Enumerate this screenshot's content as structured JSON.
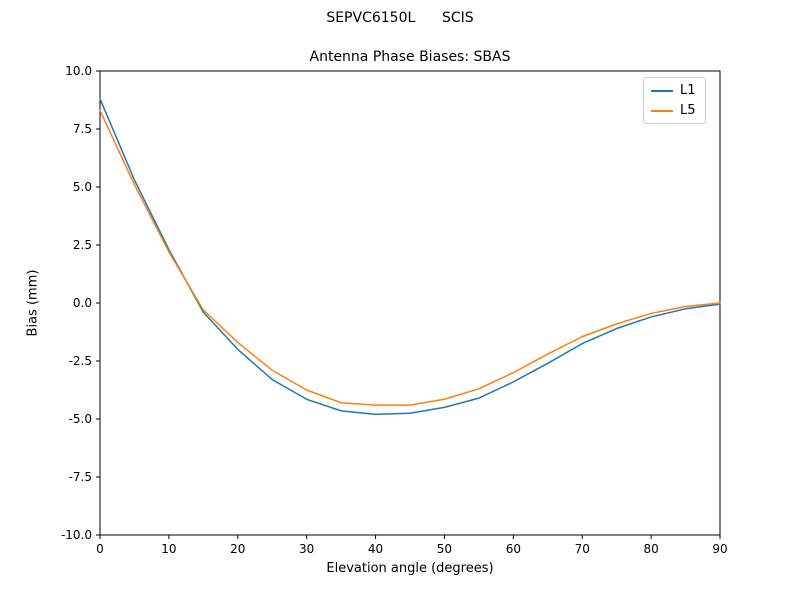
{
  "page": {
    "background": "#ffffff"
  },
  "chart_data": {
    "type": "line",
    "suptitle": "SEPVC6150L      SCIS",
    "title": "Antenna Phase Biases: SBAS",
    "xlabel": "Elevation angle (degrees)",
    "ylabel": "Bias (mm)",
    "xlim": [
      0,
      90
    ],
    "ylim": [
      -10,
      10
    ],
    "xticks": [
      0,
      10,
      20,
      30,
      40,
      50,
      60,
      70,
      80,
      90
    ],
    "yticks": [
      -10.0,
      -7.5,
      -5.0,
      -2.5,
      0.0,
      2.5,
      5.0,
      7.5,
      10.0
    ],
    "grid": false,
    "legend_position": "upper right",
    "x": [
      0,
      5,
      10,
      15,
      20,
      25,
      30,
      35,
      40,
      45,
      50,
      55,
      60,
      65,
      70,
      75,
      80,
      85,
      90
    ],
    "series": [
      {
        "name": "L1",
        "color": "#1f77b4",
        "values": [
          8.8,
          5.3,
          2.3,
          -0.4,
          -2.0,
          -3.3,
          -4.15,
          -4.65,
          -4.8,
          -4.75,
          -4.5,
          -4.1,
          -3.4,
          -2.6,
          -1.75,
          -1.1,
          -0.6,
          -0.25,
          -0.05
        ]
      },
      {
        "name": "L5",
        "color": "#ff7f0e",
        "values": [
          8.3,
          5.1,
          2.2,
          -0.3,
          -1.7,
          -2.9,
          -3.75,
          -4.3,
          -4.4,
          -4.4,
          -4.15,
          -3.7,
          -3.0,
          -2.2,
          -1.45,
          -0.9,
          -0.45,
          -0.15,
          0.0
        ]
      }
    ]
  }
}
